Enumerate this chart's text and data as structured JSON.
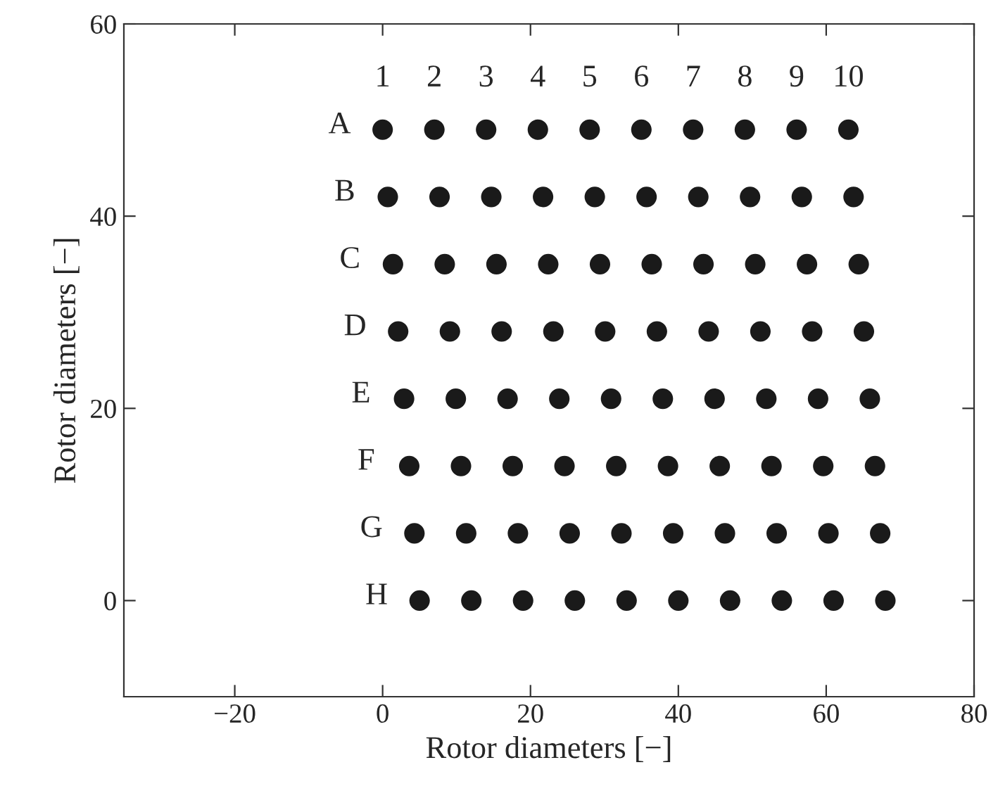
{
  "chart_data": {
    "type": "scatter",
    "xlabel": "Rotor diameters [−]",
    "ylabel": "Rotor diameters [−]",
    "xlim": [
      -35,
      80
    ],
    "ylim": [
      -10,
      60
    ],
    "xticks": [
      {
        "value": -20,
        "label": "−20"
      },
      0,
      20,
      40,
      60,
      80
    ],
    "yticks": [
      0,
      20,
      40,
      60
    ],
    "marker": "circle",
    "grid": false,
    "legend": false,
    "series": [
      {
        "color": "#1a1a1a",
        "x": [
          0,
          7,
          14,
          21,
          28,
          35,
          42,
          49,
          56,
          63,
          0.7,
          7.7,
          14.7,
          21.7,
          28.7,
          35.7,
          42.7,
          49.7,
          56.7,
          63.7,
          1.4,
          8.4,
          15.4,
          22.4,
          29.4,
          36.4,
          43.4,
          50.4,
          57.4,
          64.4,
          2.1,
          9.1,
          16.1,
          23.1,
          30.1,
          37.1,
          44.1,
          51.1,
          58.1,
          65.1,
          2.9,
          9.9,
          16.9,
          23.9,
          30.9,
          37.9,
          44.9,
          51.9,
          58.9,
          65.9,
          3.6,
          10.6,
          17.6,
          24.6,
          31.6,
          38.6,
          45.6,
          52.6,
          59.6,
          66.6,
          4.3,
          11.3,
          18.3,
          25.3,
          32.3,
          39.3,
          46.3,
          53.3,
          60.3,
          67.3,
          5,
          12,
          19,
          26,
          33,
          40,
          47,
          54,
          61,
          68
        ],
        "values": [
          49,
          49,
          49,
          49,
          49,
          49,
          49,
          49,
          49,
          49,
          42,
          42,
          42,
          42,
          42,
          42,
          42,
          42,
          42,
          42,
          35,
          35,
          35,
          35,
          35,
          35,
          35,
          35,
          35,
          35,
          28,
          28,
          28,
          28,
          28,
          28,
          28,
          28,
          28,
          28,
          21,
          21,
          21,
          21,
          21,
          21,
          21,
          21,
          21,
          21,
          14,
          14,
          14,
          14,
          14,
          14,
          14,
          14,
          14,
          14,
          7,
          7,
          7,
          7,
          7,
          7,
          7,
          7,
          7,
          7,
          0,
          0,
          0,
          0,
          0,
          0,
          0,
          0,
          0,
          0
        ]
      }
    ],
    "annotations": [
      "1",
      "2",
      "3",
      "4",
      "5",
      "6",
      "7",
      "8",
      "9",
      "10",
      "A",
      "B",
      "C",
      "D",
      "E",
      "F",
      "G",
      "H"
    ]
  }
}
